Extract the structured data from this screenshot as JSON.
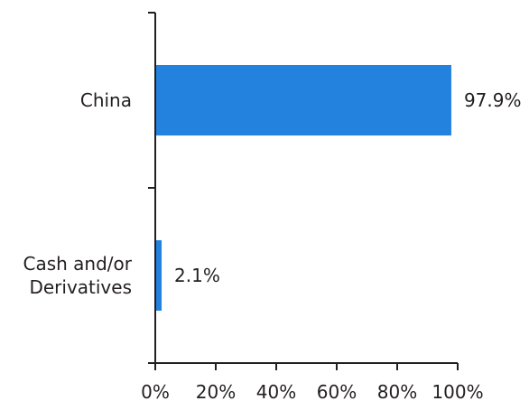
{
  "chart_data": {
    "type": "bar",
    "orientation": "horizontal",
    "categories": [
      [
        "China"
      ],
      [
        "Cash and/or",
        "Derivatives"
      ]
    ],
    "values": [
      97.9,
      2.1
    ],
    "data_labels": [
      "97.9%",
      "2.1%"
    ],
    "xlim": [
      0,
      100
    ],
    "x_ticks": [
      0,
      20,
      40,
      60,
      80,
      100
    ],
    "x_tick_labels": [
      "0%",
      "20%",
      "40%",
      "60%",
      "80%",
      "100%"
    ],
    "grid": false,
    "bar_color": "#2382de",
    "axis_color": "#231f20"
  }
}
